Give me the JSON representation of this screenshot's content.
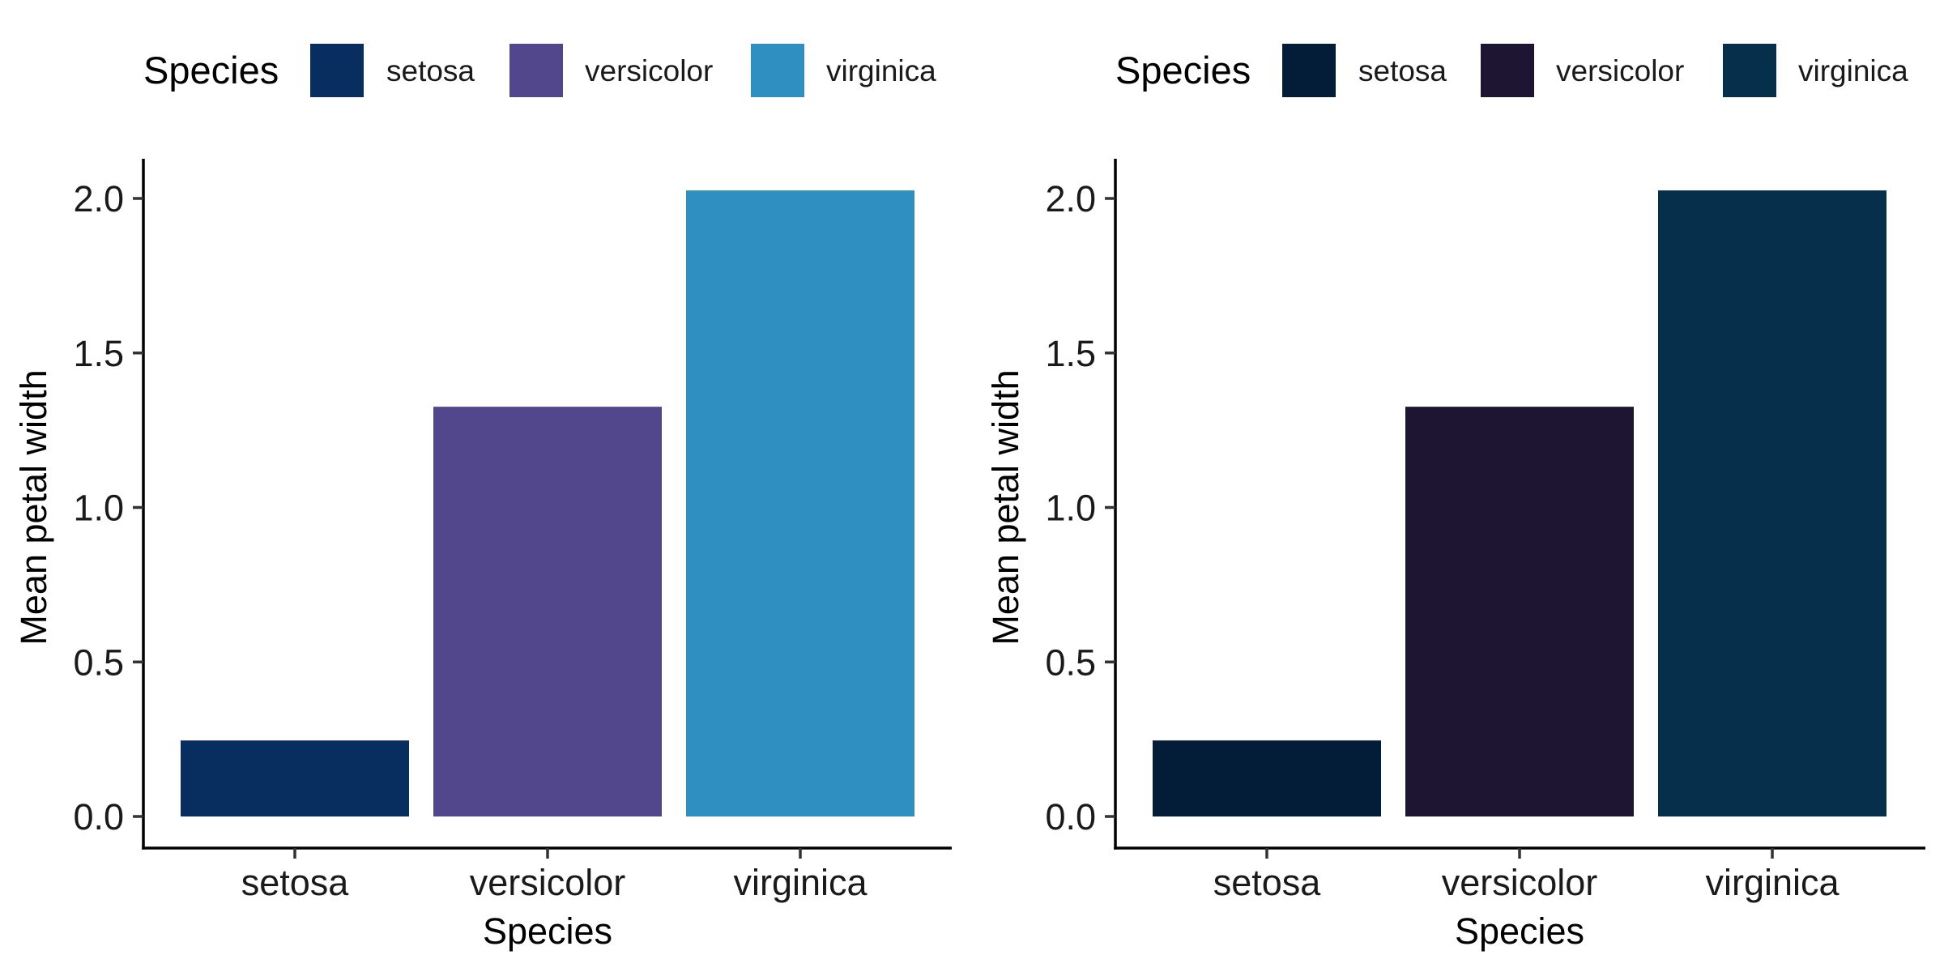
{
  "chart_data": [
    {
      "type": "bar",
      "categories": [
        "setosa",
        "versicolor",
        "virginica"
      ],
      "values": [
        0.246,
        1.326,
        2.026
      ],
      "xlabel": "Species",
      "ylabel": "Mean petal width",
      "ylim": [
        0,
        2.0
      ],
      "yticks": [
        "0.0",
        "0.5",
        "1.0",
        "1.5",
        "2.0"
      ],
      "grid": false,
      "legend": {
        "title": "Species",
        "position": "top",
        "entries": [
          "setosa",
          "versicolor",
          "virginica"
        ]
      },
      "colors": [
        "#072e5e",
        "#52468c",
        "#2f8fc1"
      ]
    },
    {
      "type": "bar",
      "categories": [
        "setosa",
        "versicolor",
        "virginica"
      ],
      "values": [
        0.246,
        1.326,
        2.026
      ],
      "xlabel": "Species",
      "ylabel": "Mean petal width",
      "ylim": [
        0,
        2.0
      ],
      "yticks": [
        "0.0",
        "0.5",
        "1.0",
        "1.5",
        "2.0"
      ],
      "grid": false,
      "legend": {
        "title": "Species",
        "position": "top",
        "entries": [
          "setosa",
          "versicolor",
          "virginica"
        ]
      },
      "colors": [
        "#031c38",
        "#1e1532",
        "#052f4a"
      ]
    }
  ]
}
